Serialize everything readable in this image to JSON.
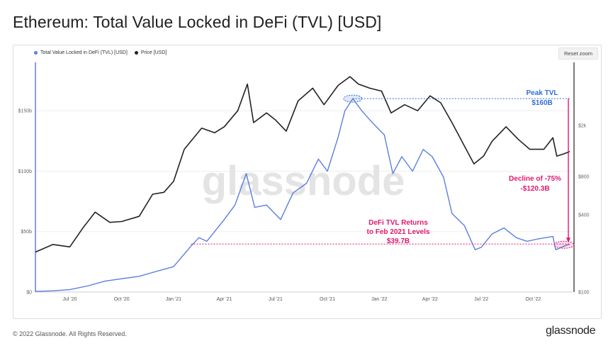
{
  "page": {
    "title": "Ethereum: Total Value Locked in DeFi (TVL) [USD]"
  },
  "legend": [
    {
      "label": "Total Value Locked in DeFi (TVL) [USD]",
      "color": "#5b7fe0"
    },
    {
      "label": "Price [USD]",
      "color": "#222222"
    }
  ],
  "toolbar": {
    "reset_zoom": "Reset zoom"
  },
  "footer": {
    "copyright": "© 2022 Glassnode. All Rights Reserved.",
    "brand": "glassnode"
  },
  "watermark": "glassnode",
  "chart_data": {
    "type": "line",
    "x_ticks": [
      "Jul '20",
      "Oct '20",
      "Jan '21",
      "Apr '21",
      "Jul '21",
      "Oct '21",
      "Jan '22",
      "Apr '22",
      "Jul '22",
      "Oct '22"
    ],
    "y_left_ticks": [
      "$0",
      "$50b",
      "$100b",
      "$150b"
    ],
    "y_left_range": [
      0,
      190
    ],
    "y_right_ticks": [
      "$100",
      "$400",
      "$800",
      "$2k"
    ],
    "y_right_log": true,
    "series": [
      {
        "name": "Total Value Locked in DeFi (TVL) [USD]",
        "axis": "left",
        "color": "#5b7fe0",
        "points": [
          [
            "2020-05-01",
            0.5
          ],
          [
            "2020-06-01",
            1
          ],
          [
            "2020-07-01",
            2
          ],
          [
            "2020-08-01",
            5
          ],
          [
            "2020-09-01",
            9
          ],
          [
            "2020-10-01",
            11
          ],
          [
            "2020-11-01",
            13
          ],
          [
            "2020-12-01",
            17
          ],
          [
            "2021-01-01",
            21
          ],
          [
            "2021-02-01",
            38
          ],
          [
            "2021-02-15",
            45
          ],
          [
            "2021-03-01",
            42
          ],
          [
            "2021-04-01",
            60
          ],
          [
            "2021-04-20",
            72
          ],
          [
            "2021-05-10",
            98
          ],
          [
            "2021-05-25",
            70
          ],
          [
            "2021-06-15",
            72
          ],
          [
            "2021-07-10",
            60
          ],
          [
            "2021-08-01",
            82
          ],
          [
            "2021-08-25",
            90
          ],
          [
            "2021-09-15",
            110
          ],
          [
            "2021-10-01",
            100
          ],
          [
            "2021-10-20",
            128
          ],
          [
            "2021-11-01",
            150
          ],
          [
            "2021-11-15",
            160
          ],
          [
            "2021-12-01",
            150
          ],
          [
            "2021-12-20",
            140
          ],
          [
            "2022-01-10",
            130
          ],
          [
            "2022-01-25",
            98
          ],
          [
            "2022-02-10",
            112
          ],
          [
            "2022-03-01",
            100
          ],
          [
            "2022-03-20",
            118
          ],
          [
            "2022-04-05",
            112
          ],
          [
            "2022-04-25",
            95
          ],
          [
            "2022-05-10",
            65
          ],
          [
            "2022-06-01",
            55
          ],
          [
            "2022-06-20",
            35
          ],
          [
            "2022-07-01",
            37
          ],
          [
            "2022-07-20",
            48
          ],
          [
            "2022-08-10",
            53
          ],
          [
            "2022-09-01",
            45
          ],
          [
            "2022-09-20",
            42
          ],
          [
            "2022-10-10",
            44
          ],
          [
            "2022-11-05",
            46
          ],
          [
            "2022-11-10",
            35
          ],
          [
            "2022-11-25",
            38
          ],
          [
            "2022-12-05",
            39.7
          ]
        ]
      },
      {
        "name": "Price [USD]",
        "axis": "right",
        "color": "#222222",
        "points": [
          [
            "2020-05-01",
            205
          ],
          [
            "2020-06-01",
            235
          ],
          [
            "2020-07-01",
            225
          ],
          [
            "2020-07-25",
            320
          ],
          [
            "2020-08-15",
            420
          ],
          [
            "2020-09-10",
            350
          ],
          [
            "2020-10-01",
            355
          ],
          [
            "2020-11-01",
            390
          ],
          [
            "2020-11-25",
            580
          ],
          [
            "2020-12-15",
            600
          ],
          [
            "2021-01-01",
            730
          ],
          [
            "2021-01-20",
            1300
          ],
          [
            "2021-02-20",
            1900
          ],
          [
            "2021-03-15",
            1750
          ],
          [
            "2021-04-01",
            1950
          ],
          [
            "2021-04-25",
            2600
          ],
          [
            "2021-05-12",
            4200
          ],
          [
            "2021-05-23",
            2100
          ],
          [
            "2021-06-15",
            2500
          ],
          [
            "2021-07-01",
            2200
          ],
          [
            "2021-07-20",
            1800
          ],
          [
            "2021-08-10",
            3100
          ],
          [
            "2021-09-05",
            3900
          ],
          [
            "2021-09-25",
            2900
          ],
          [
            "2021-10-20",
            4100
          ],
          [
            "2021-11-10",
            4800
          ],
          [
            "2021-11-25",
            4200
          ],
          [
            "2021-12-15",
            3900
          ],
          [
            "2022-01-05",
            3700
          ],
          [
            "2022-01-22",
            2500
          ],
          [
            "2022-02-15",
            2900
          ],
          [
            "2022-03-10",
            2600
          ],
          [
            "2022-04-01",
            3400
          ],
          [
            "2022-04-20",
            3000
          ],
          [
            "2022-05-10",
            2100
          ],
          [
            "2022-06-18",
            1000
          ],
          [
            "2022-07-05",
            1150
          ],
          [
            "2022-07-20",
            1500
          ],
          [
            "2022-08-14",
            1950
          ],
          [
            "2022-09-05",
            1550
          ],
          [
            "2022-09-25",
            1300
          ],
          [
            "2022-10-20",
            1300
          ],
          [
            "2022-11-05",
            1600
          ],
          [
            "2022-11-12",
            1150
          ],
          [
            "2022-11-25",
            1200
          ],
          [
            "2022-12-05",
            1250
          ]
        ]
      }
    ],
    "annotations": [
      {
        "id": "peak",
        "text": [
          "Peak TVL",
          "$160B"
        ],
        "color": "#2f6fd6"
      },
      {
        "id": "decline",
        "text": [
          "Decline of -75%",
          "-$120.3B"
        ],
        "color": "#e0186c"
      },
      {
        "id": "returns",
        "text": [
          "DeFi TVL Returns",
          "to Feb 2021 Levels",
          "$39.7B"
        ],
        "color": "#e0186c"
      }
    ]
  }
}
